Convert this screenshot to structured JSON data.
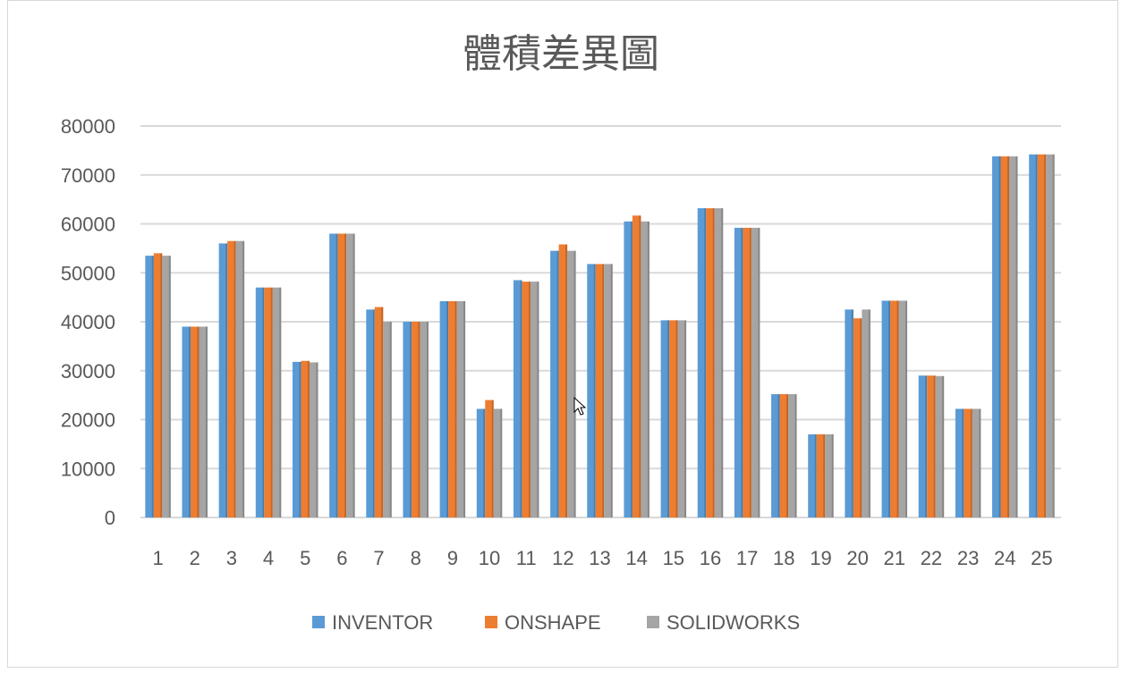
{
  "chart_data": {
    "type": "bar",
    "title": "體積差異圖",
    "xlabel": "",
    "ylabel": "",
    "ylim": [
      0,
      80000
    ],
    "yticks": [
      "0",
      "10000",
      "20000",
      "30000",
      "40000",
      "50000",
      "60000",
      "70000",
      "80000"
    ],
    "categories": [
      "1",
      "2",
      "3",
      "4",
      "5",
      "6",
      "7",
      "8",
      "9",
      "10",
      "11",
      "12",
      "13",
      "14",
      "15",
      "16",
      "17",
      "18",
      "19",
      "20",
      "21",
      "22",
      "23",
      "24",
      "25"
    ],
    "series": [
      {
        "name": "INVENTOR",
        "color": "#5b9bd5",
        "values": [
          53500,
          39000,
          56000,
          47000,
          31800,
          58000,
          42500,
          40000,
          44200,
          22200,
          48500,
          54500,
          51800,
          60500,
          40300,
          63200,
          59200,
          25200,
          17000,
          42500,
          44300,
          29000,
          22200,
          73800,
          74200
        ]
      },
      {
        "name": "ONSHAPE",
        "color": "#ed7d31",
        "values": [
          54000,
          39000,
          56500,
          47000,
          32000,
          58000,
          43000,
          40000,
          44200,
          24000,
          48200,
          55800,
          51800,
          61700,
          40300,
          63200,
          59200,
          25200,
          17000,
          40700,
          44300,
          29000,
          22200,
          73800,
          74200
        ]
      },
      {
        "name": "SOLIDWORKS",
        "color": "#a5a5a5",
        "values": [
          53500,
          39000,
          56500,
          47000,
          31700,
          58000,
          40000,
          40000,
          44200,
          22200,
          48200,
          54500,
          51800,
          60500,
          40300,
          63200,
          59200,
          25200,
          17000,
          42500,
          44300,
          28900,
          22200,
          73800,
          74200
        ]
      }
    ],
    "legend_position": "bottom",
    "grid": true
  }
}
